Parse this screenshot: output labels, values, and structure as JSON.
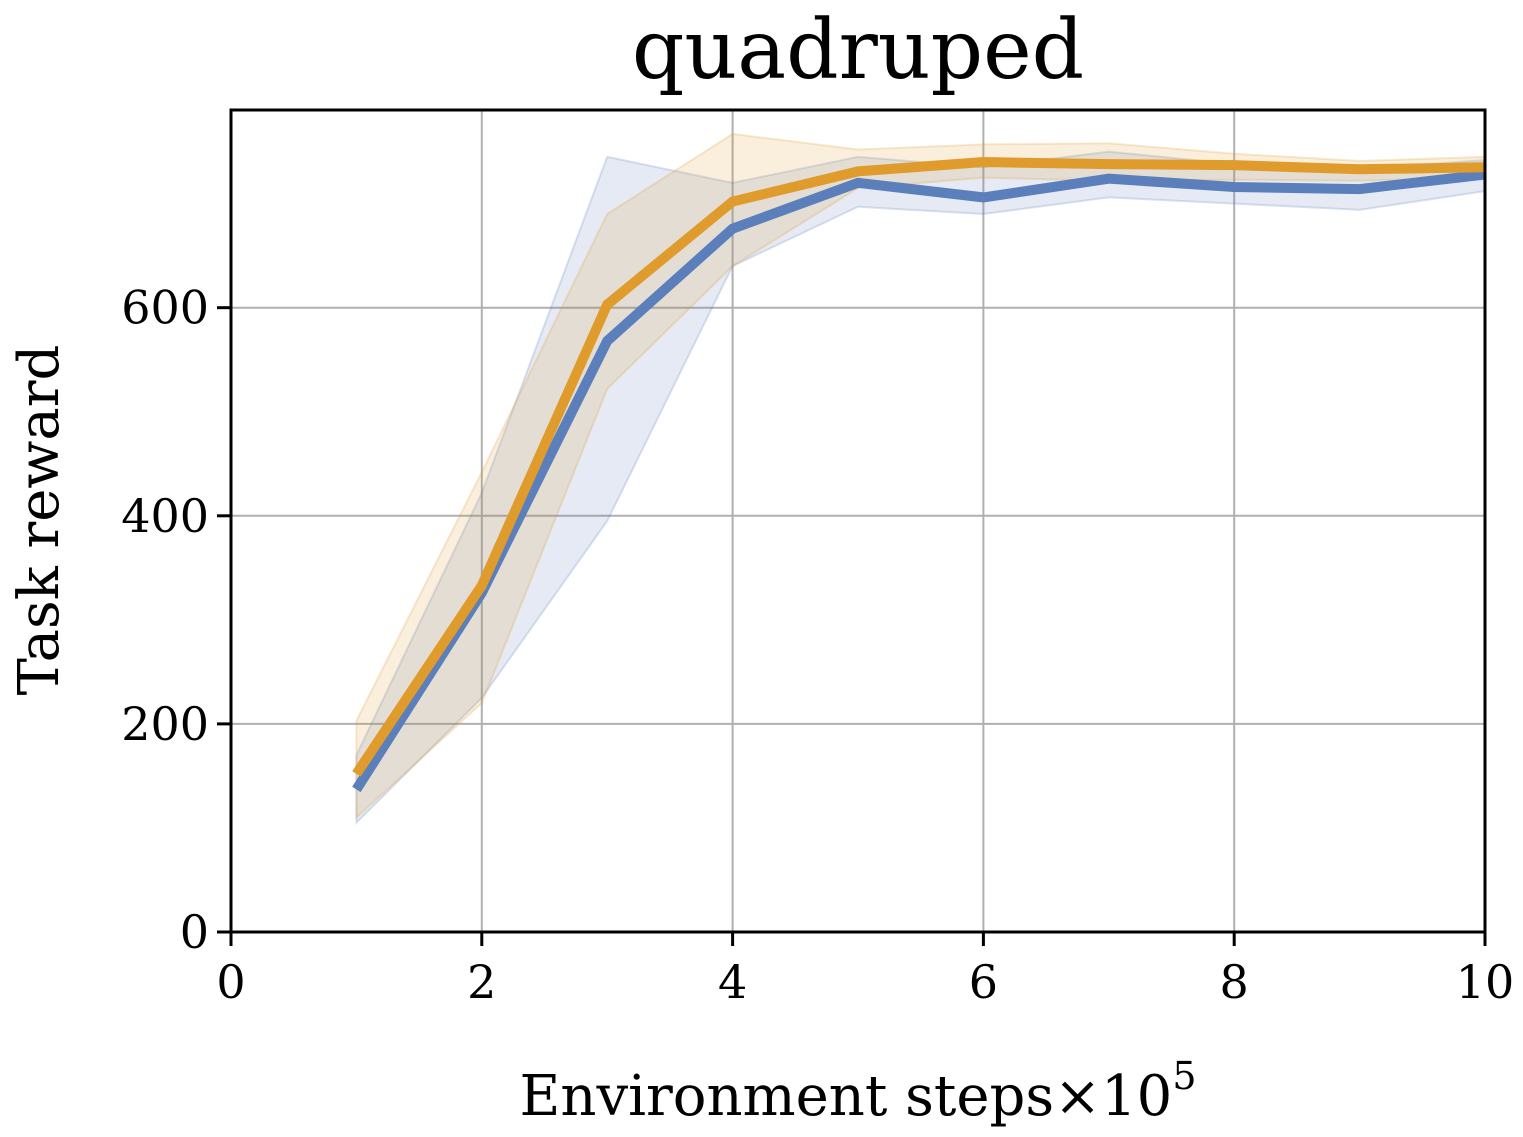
{
  "chart_data": {
    "type": "line",
    "title": "quadruped",
    "xlabel": "Environment steps",
    "xlabel_multiplier": "×10",
    "xlabel_exponent": "5",
    "ylabel": "Task reward",
    "xlim": [
      0,
      10
    ],
    "ylim": [
      0,
      790
    ],
    "xticks": [
      0,
      2,
      4,
      6,
      8,
      10
    ],
    "xtick_labels": [
      "0",
      "2",
      "4",
      "6",
      "8",
      "10"
    ],
    "yticks": [
      0,
      200,
      400,
      600
    ],
    "ytick_labels": [
      "0",
      "200",
      "400",
      "600"
    ],
    "grid": true,
    "legend": "none",
    "x": [
      1,
      2,
      3,
      4,
      5,
      6,
      7,
      8,
      9,
      10
    ],
    "series": [
      {
        "color": "#5b7fba",
        "values": [
          137,
          326,
          568,
          676,
          720,
          706,
          724,
          716,
          714,
          728
        ],
        "lower": [
          105,
          225,
          395,
          640,
          697,
          690,
          706,
          700,
          694,
          712
        ],
        "upper": [
          170,
          422,
          745,
          720,
          745,
          735,
          750,
          738,
          733,
          742
        ]
      },
      {
        "color": "#e09b2d",
        "values": [
          152,
          333,
          603,
          702,
          731,
          740,
          738,
          737,
          733,
          735
        ],
        "lower": [
          110,
          220,
          522,
          640,
          715,
          725,
          722,
          723,
          722,
          725
        ],
        "upper": [
          203,
          442,
          690,
          767,
          752,
          757,
          758,
          748,
          741,
          745
        ]
      }
    ]
  }
}
